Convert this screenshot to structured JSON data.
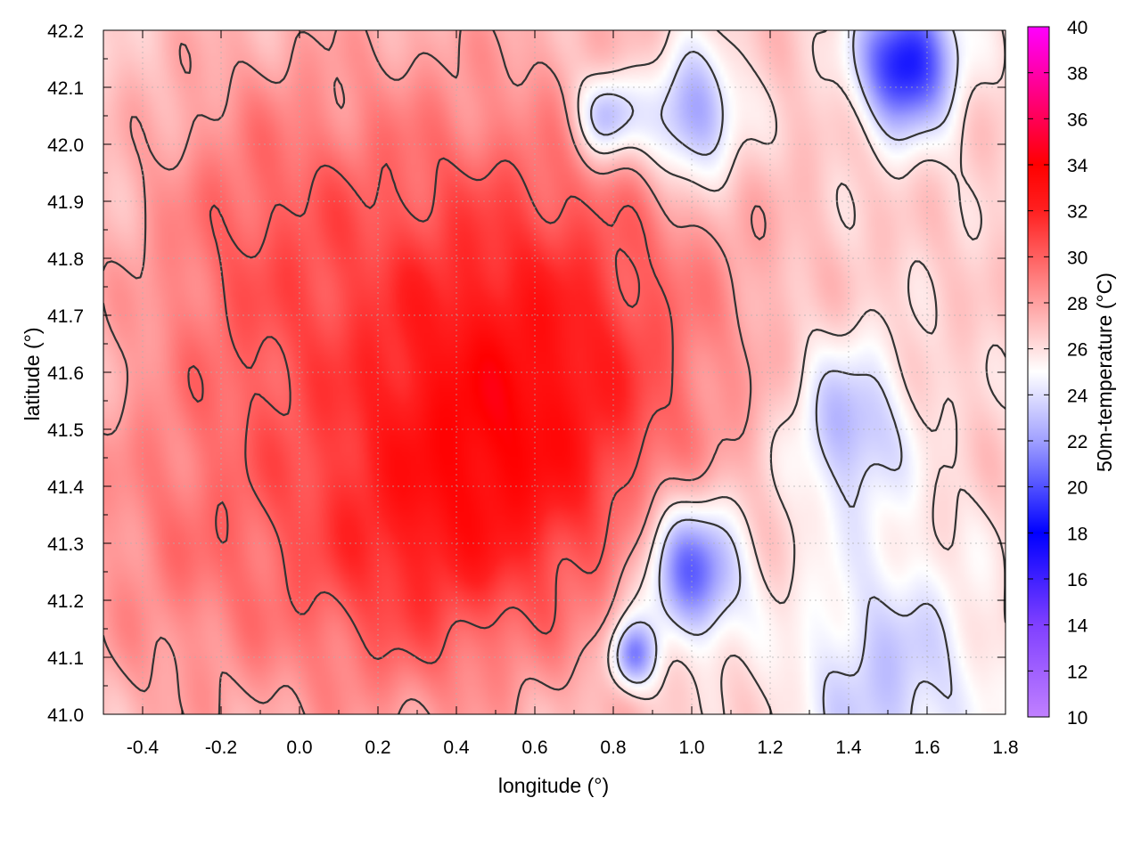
{
  "chart_data": {
    "type": "heatmap",
    "xlabel": "longitude (°)",
    "ylabel": "latitude (°)",
    "colorbar_label": "50m-temperature (°C)",
    "xlim": [
      -0.5,
      1.8
    ],
    "ylim": [
      41.0,
      42.2
    ],
    "x_ticks": [
      "-0.4",
      "-0.2",
      "0.0",
      "0.2",
      "0.4",
      "0.6",
      "0.8",
      "1.0",
      "1.2",
      "1.4",
      "1.6",
      "1.8"
    ],
    "y_ticks": [
      "41.0",
      "41.1",
      "41.2",
      "41.3",
      "41.4",
      "41.5",
      "41.6",
      "41.7",
      "41.8",
      "41.9",
      "42.0",
      "42.1",
      "42.2"
    ],
    "colorbar_range": [
      10,
      40
    ],
    "colorbar_ticks": [
      "10",
      "12",
      "14",
      "16",
      "18",
      "20",
      "22",
      "24",
      "26",
      "28",
      "30",
      "32",
      "34",
      "36",
      "38",
      "40"
    ],
    "colormap": [
      {
        "v": 10,
        "color": "#c080ff"
      },
      {
        "v": 14,
        "color": "#8040ff"
      },
      {
        "v": 18,
        "color": "#0000ff"
      },
      {
        "v": 22,
        "color": "#a0a0ff"
      },
      {
        "v": 25,
        "color": "#ffffff"
      },
      {
        "v": 28,
        "color": "#ffa0a0"
      },
      {
        "v": 32,
        "color": "#ff2020"
      },
      {
        "v": 34,
        "color": "#ff0000"
      },
      {
        "v": 37,
        "color": "#ff0080"
      },
      {
        "v": 40,
        "color": "#ff00ff"
      }
    ],
    "grid": true,
    "field_features": [
      {
        "lon": 0.72,
        "lat": 41.62,
        "temp": 30.5,
        "r": 0.42
      },
      {
        "lon": 0.25,
        "lat": 41.72,
        "temp": 29.5,
        "r": 0.45
      },
      {
        "lon": -0.3,
        "lat": 41.3,
        "temp": 28.8,
        "r": 0.35
      },
      {
        "lon": 0.2,
        "lat": 41.25,
        "temp": 29.0,
        "r": 0.3
      },
      {
        "lon": 0.5,
        "lat": 41.4,
        "temp": 29.2,
        "r": 0.3
      },
      {
        "lon": -0.15,
        "lat": 41.85,
        "temp": 28.5,
        "r": 0.3
      },
      {
        "lon": 1.0,
        "lat": 41.25,
        "temp": 19.5,
        "r": 0.13
      },
      {
        "lon": 1.55,
        "lat": 42.15,
        "temp": 18.0,
        "r": 0.12
      },
      {
        "lon": 1.0,
        "lat": 42.05,
        "temp": 21.0,
        "r": 0.12
      },
      {
        "lon": 0.78,
        "lat": 42.05,
        "temp": 21.5,
        "r": 0.08
      },
      {
        "lon": 1.4,
        "lat": 41.5,
        "temp": 22.5,
        "r": 0.15
      },
      {
        "lon": 1.5,
        "lat": 41.05,
        "temp": 23.2,
        "r": 0.25
      },
      {
        "lon": 0.85,
        "lat": 41.1,
        "temp": 21.0,
        "r": 0.06
      },
      {
        "lon": 1.45,
        "lat": 41.85,
        "temp": 26.5,
        "r": 0.2
      }
    ],
    "background_temp": 26.5
  }
}
